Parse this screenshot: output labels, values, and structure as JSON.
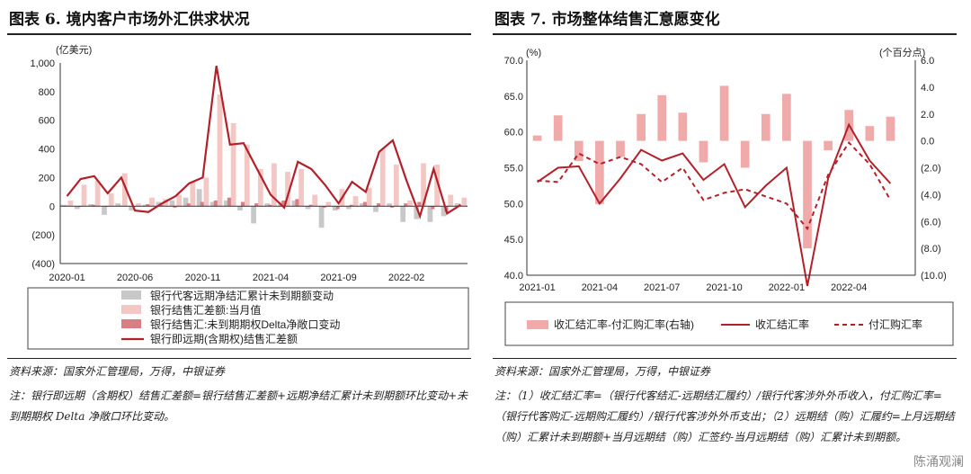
{
  "left": {
    "title": "图表 6. 境内客户市场外汇供求状况",
    "source": "资料来源：国家外汇管理局，万得，中银证券",
    "note": "注：银行即远期（含期权）结售汇差额=银行结售汇差额+远期净结汇累计未到期额环比变动+未到期期权 Delta 净敞口环比变动。",
    "chart_data": {
      "type": "bar",
      "ylabel": "(亿美元)",
      "ylim": [
        -400,
        1000
      ],
      "yticks": [
        1000,
        800,
        600,
        400,
        200,
        0,
        -200,
        -400
      ],
      "ytick_labels": [
        "1,000",
        "800",
        "600",
        "400",
        "200",
        "0",
        "(200)",
        "(400)"
      ],
      "x_labels": [
        "2020-01",
        "2020-06",
        "2020-11",
        "2021-04",
        "2021-09",
        "2022-02"
      ],
      "x_label_index": [
        0,
        5,
        10,
        15,
        20,
        25
      ],
      "n": 30,
      "series": [
        {
          "name": "银行代客远期净结汇累计未到期额变动",
          "kind": "bar",
          "color": "#c8c8c8",
          "values": [
            10,
            -20,
            15,
            -60,
            20,
            -30,
            10,
            30,
            40,
            60,
            120,
            30,
            40,
            -30,
            -120,
            20,
            30,
            40,
            -20,
            -150,
            -30,
            -20,
            20,
            -40,
            20,
            -110,
            -90,
            -110,
            -70,
            20
          ]
        },
        {
          "name": "银行结售汇差额:当月值",
          "kind": "bar",
          "color": "#f2c7c4",
          "values": [
            40,
            150,
            180,
            90,
            230,
            20,
            60,
            50,
            80,
            170,
            200,
            780,
            580,
            430,
            260,
            300,
            240,
            260,
            80,
            30,
            120,
            70,
            130,
            400,
            290,
            40,
            300,
            290,
            80,
            60
          ]
        },
        {
          "name": "银行结售汇:未到期期权Delta净敞口变动",
          "kind": "bar",
          "color": "#d97e83",
          "values": [
            5,
            -5,
            10,
            -5,
            5,
            -5,
            15,
            10,
            -10,
            20,
            30,
            40,
            60,
            30,
            20,
            10,
            40,
            50,
            10,
            -10,
            -20,
            10,
            30,
            20,
            -10,
            20,
            30,
            -20,
            -40,
            5
          ]
        },
        {
          "name": "银行即远期(含期权)结售汇差额",
          "kind": "line",
          "color": "#b4202a",
          "values": [
            70,
            190,
            210,
            90,
            200,
            -30,
            -40,
            20,
            70,
            160,
            200,
            980,
            430,
            440,
            260,
            80,
            -10,
            310,
            260,
            150,
            20,
            170,
            100,
            380,
            460,
            180,
            -70,
            260,
            -50,
            10
          ]
        }
      ]
    }
  },
  "right": {
    "title": "图表 7. 市场整体结售汇意愿变化",
    "source": "资料来源：国家外汇管理局，万得，中银证券",
    "note": "注：（1）收汇结汇率=（银行代客结汇-远期结汇履约）/银行代客涉外外币收入，付汇购汇率=（银行代客购汇-远期购汇履约）/银行代客涉外外币支出；（2）远期结（购）汇履约=上月远期结（购）汇累计未到期额+当月远期结（购）汇签约-当月远期结（购）汇累计未到期额。",
    "watermark": "陈涌观澜",
    "chart_data": {
      "type": "bar",
      "ylabel_left": "(%)",
      "ylabel_right": "(个百分点)",
      "ylim_left": [
        40,
        70
      ],
      "yticks_left": [
        70,
        65,
        60,
        55,
        50,
        45,
        40
      ],
      "ytick_labels_left": [
        "70.0",
        "65.0",
        "60.0",
        "55.0",
        "50.0",
        "45.0",
        "40.0"
      ],
      "ylim_right": [
        -10,
        6
      ],
      "yticks_right": [
        6,
        4,
        2,
        0,
        -2,
        -4,
        -6,
        -8,
        -10
      ],
      "ytick_labels_right": [
        "6.0",
        "4.0",
        "2.0",
        "0.0",
        "(2.0)",
        "(4.0)",
        "(6.0)",
        "(8.0)",
        "(10.0)"
      ],
      "x_labels": [
        "2021-01",
        "2021-04",
        "2021-07",
        "2021-10",
        "2022-01",
        "2022-04"
      ],
      "x_label_index": [
        0,
        3,
        6,
        9,
        12,
        15
      ],
      "n": 18,
      "series": [
        {
          "name": "收汇结汇率-付汇购汇率(右轴)",
          "kind": "bar",
          "axis": "right",
          "color": "#f0aaaa",
          "values": [
            0.4,
            1.9,
            -1.5,
            -4.7,
            -1.2,
            2.0,
            3.4,
            2.1,
            -1.6,
            4.1,
            -2.0,
            2.0,
            3.5,
            -8.0,
            -0.7,
            2.3,
            1.1,
            1.8
          ]
        },
        {
          "name": "收汇结汇率",
          "kind": "line",
          "axis": "left",
          "color": "#b4202a",
          "dash": false,
          "values": [
            53.0,
            55.0,
            55.2,
            50.0,
            53.5,
            57.5,
            56.0,
            57.0,
            53.3,
            55.5,
            49.5,
            52.5,
            55.0,
            38.5,
            53.5,
            61.0,
            56.0,
            52.8
          ]
        },
        {
          "name": "付汇购汇率",
          "kind": "line",
          "axis": "left",
          "color": "#b4202a",
          "dash": true,
          "values": [
            53.2,
            53.0,
            57.0,
            55.5,
            56.5,
            55.5,
            53.0,
            55.0,
            50.5,
            51.5,
            52.0,
            51.0,
            50.0,
            46.5,
            54.0,
            58.5,
            55.5,
            50.5
          ]
        }
      ]
    }
  }
}
